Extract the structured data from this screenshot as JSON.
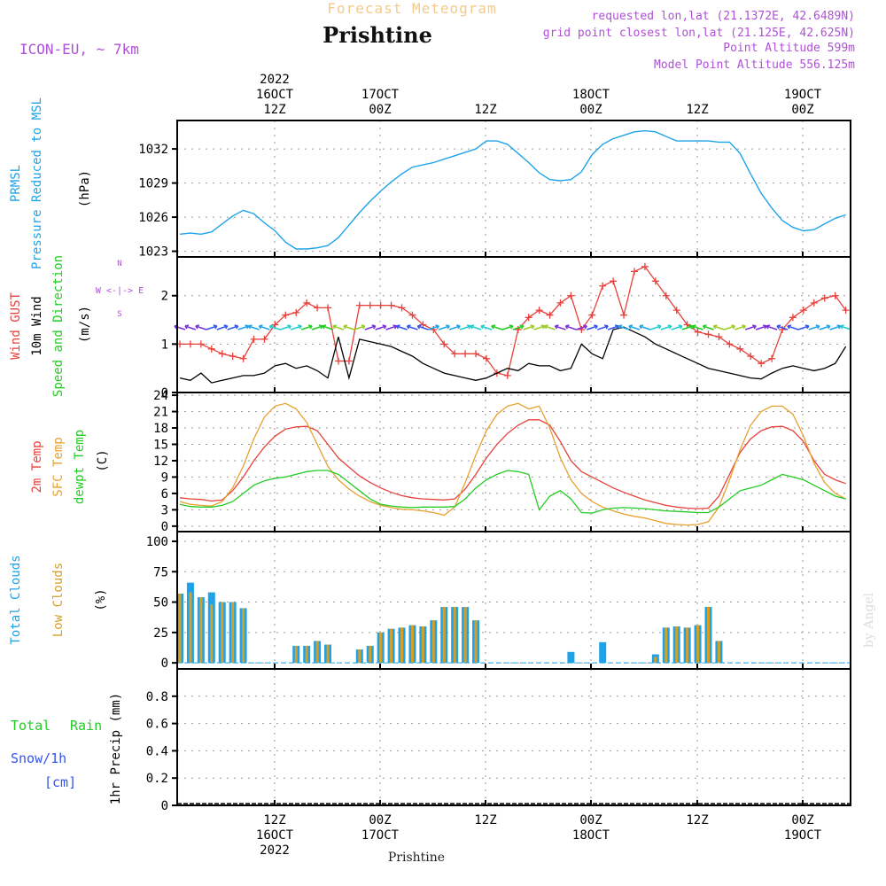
{
  "header": {
    "forecast_title": "Forecast Meteogram",
    "location": "Prishtine",
    "model": "ICON-EU, ~ 7km",
    "requested": "requested lon,lat (21.1372E, 42.6489N)",
    "grid_point": "grid point closest lon,lat (21.125E, 42.625N)",
    "point_altitude": "Point Altitude 599m",
    "model_altitude": "Model Point Altitude 556.125m",
    "bottom_location": "Prishtine",
    "watermark": "by Angel"
  },
  "top_axis": [
    {
      "lines": [
        "2022",
        "16OCT",
        "12Z"
      ]
    },
    {
      "lines": [
        "17OCT",
        "00Z"
      ]
    },
    {
      "lines": [
        "12Z"
      ]
    },
    {
      "lines": [
        "18OCT",
        "00Z"
      ]
    },
    {
      "lines": [
        "12Z"
      ]
    },
    {
      "lines": [
        "19OCT",
        "00Z"
      ]
    }
  ],
  "bottom_axis": [
    {
      "lines": [
        "12Z",
        "16OCT",
        "2022"
      ]
    },
    {
      "lines": [
        "00Z",
        "17OCT"
      ]
    },
    {
      "lines": [
        "12Z"
      ]
    },
    {
      "lines": [
        "00Z",
        "18OCT"
      ]
    },
    {
      "lines": [
        "12Z"
      ]
    },
    {
      "lines": [
        "00Z",
        "19OCT"
      ]
    }
  ],
  "panel_labels": {
    "pressure": {
      "name": [
        "PRMSL",
        "Pressure Reduced to MSL"
      ],
      "unit": "(hPa)"
    },
    "wind": {
      "gust": "Wind GUST",
      "wind10": "10m Wind",
      "speed": "Speed and Direction",
      "unit": "(m/s)",
      "compass": "W <-|-> E"
    },
    "temp": {
      "t2m": "2m Temp",
      "sfc": "SFC Temp",
      "dew": "dewpt Temp",
      "unit": "(C)"
    },
    "cloud": {
      "total": "Total Clouds",
      "low": "Low Clouds",
      "unit": "(%)"
    },
    "precip": {
      "rain_a": "Total",
      "rain_b": "Rain",
      "snow": "Snow/1h",
      "snow_unit": "[cm]",
      "unit": "1hr Precip (mm)"
    }
  },
  "colors": {
    "pressure": "#1fa3e8",
    "gust": "#e8403a",
    "wind": "#000000",
    "t2m": "#e8403a",
    "sfc": "#e8a030",
    "dew": "#22cc22",
    "total_cloud": "#1fa3e8",
    "low_cloud": "#d4a02a",
    "rain": "#22cc22",
    "snow": "#3355ee",
    "purple": "#b050d8"
  },
  "chart_data": [
    {
      "type": "line",
      "title": "PRMSL Pressure Reduced to MSL",
      "ylabel": "(hPa)",
      "ylim": [
        1022.5,
        1034.5
      ],
      "yticks": [
        1023,
        1026,
        1029,
        1032
      ],
      "x_hours": [
        0,
        1,
        2,
        3,
        4,
        5,
        6,
        7,
        8,
        9,
        10,
        11,
        12,
        13,
        14,
        15,
        16,
        17,
        18,
        19,
        20,
        21,
        22,
        23,
        24,
        25,
        26,
        27,
        28,
        29,
        30,
        31,
        32,
        33,
        34,
        35,
        36,
        37,
        38,
        39,
        40,
        41,
        42,
        43,
        44,
        45,
        46,
        47,
        48,
        49,
        50,
        51,
        52,
        53,
        54,
        55,
        56,
        57,
        58,
        59,
        60,
        61,
        62,
        63
      ],
      "series": [
        {
          "name": "PRMSL",
          "values": [
            1024.5,
            1024.6,
            1024.5,
            1024.7,
            1025.4,
            1026.1,
            1026.6,
            1026.3,
            1025.5,
            1024.8,
            1023.8,
            1023.2,
            1023.2,
            1023.3,
            1023.5,
            1024.2,
            1025.3,
            1026.4,
            1027.4,
            1028.3,
            1029.1,
            1029.8,
            1030.4,
            1030.6,
            1030.8,
            1031.1,
            1031.4,
            1031.7,
            1032.0,
            1032.7,
            1032.7,
            1032.4,
            1031.6,
            1030.8,
            1029.9,
            1029.3,
            1029.2,
            1029.3,
            1030.0,
            1031.5,
            1032.4,
            1032.9,
            1033.2,
            1033.5,
            1033.6,
            1033.5,
            1033.1,
            1032.7,
            1032.7,
            1032.7,
            1032.7,
            1032.6,
            1032.6,
            1031.6,
            1029.8,
            1028.1,
            1026.8,
            1025.7,
            1025.1,
            1024.8,
            1024.9,
            1025.4,
            1025.9,
            1026.2
          ]
        }
      ]
    },
    {
      "type": "line",
      "title": "Wind GUST / 10m Wind Speed and Direction",
      "ylabel": "(m/s)",
      "ylim": [
        0,
        2.8
      ],
      "yticks": [
        0,
        1,
        2
      ],
      "x_hours": [
        0,
        1,
        2,
        3,
        4,
        5,
        6,
        7,
        8,
        9,
        10,
        11,
        12,
        13,
        14,
        15,
        16,
        17,
        18,
        19,
        20,
        21,
        22,
        23,
        24,
        25,
        26,
        27,
        28,
        29,
        30,
        31,
        32,
        33,
        34,
        35,
        36,
        37,
        38,
        39,
        40,
        41,
        42,
        43,
        44,
        45,
        46,
        47,
        48,
        49,
        50,
        51,
        52,
        53,
        54,
        55,
        56,
        57,
        58,
        59,
        60,
        61,
        62,
        63
      ],
      "series": [
        {
          "name": "Wind GUST",
          "values": [
            1.0,
            1.0,
            1.0,
            0.9,
            0.8,
            0.75,
            0.7,
            1.1,
            1.1,
            1.4,
            1.6,
            1.65,
            1.85,
            1.75,
            1.75,
            0.65,
            0.65,
            1.8,
            1.8,
            1.8,
            1.8,
            1.75,
            1.6,
            1.4,
            1.3,
            1.0,
            0.8,
            0.8,
            0.8,
            0.7,
            0.4,
            0.35,
            1.3,
            1.55,
            1.7,
            1.6,
            1.85,
            2.0,
            1.3,
            1.6,
            2.2,
            2.3,
            1.6,
            2.5,
            2.6,
            2.3,
            2.0,
            1.7,
            1.4,
            1.25,
            1.2,
            1.15,
            1.0,
            0.9,
            0.75,
            0.6,
            0.7,
            1.3,
            1.55,
            1.7,
            1.85,
            1.95,
            2.0,
            1.7
          ]
        },
        {
          "name": "10m Wind",
          "values": [
            0.3,
            0.25,
            0.4,
            0.2,
            0.25,
            0.3,
            0.35,
            0.35,
            0.4,
            0.55,
            0.6,
            0.5,
            0.55,
            0.45,
            0.3,
            1.15,
            0.3,
            1.1,
            1.05,
            1.0,
            0.95,
            0.85,
            0.75,
            0.6,
            0.5,
            0.4,
            0.35,
            0.3,
            0.25,
            0.3,
            0.4,
            0.5,
            0.45,
            0.6,
            0.55,
            0.55,
            0.45,
            0.5,
            1.0,
            0.8,
            0.7,
            1.3,
            1.35,
            1.25,
            1.15,
            1.0,
            0.9,
            0.8,
            0.7,
            0.6,
            0.5,
            0.45,
            0.4,
            0.35,
            0.3,
            0.28,
            0.4,
            0.5,
            0.55,
            0.5,
            0.45,
            0.5,
            0.6,
            0.95
          ]
        }
      ]
    },
    {
      "type": "line",
      "title": "2m Temp / SFC Temp / dewpt Temp",
      "ylabel": "(C)",
      "ylim": [
        -1,
        24.5
      ],
      "yticks": [
        0,
        3,
        6,
        9,
        12,
        15,
        18,
        21,
        24
      ],
      "x_hours": [
        0,
        1,
        2,
        3,
        4,
        5,
        6,
        7,
        8,
        9,
        10,
        11,
        12,
        13,
        14,
        15,
        16,
        17,
        18,
        19,
        20,
        21,
        22,
        23,
        24,
        25,
        26,
        27,
        28,
        29,
        30,
        31,
        32,
        33,
        34,
        35,
        36,
        37,
        38,
        39,
        40,
        41,
        42,
        43,
        44,
        45,
        46,
        47,
        48,
        49,
        50,
        51,
        52,
        53,
        54,
        55,
        56,
        57,
        58,
        59,
        60,
        61,
        62,
        63
      ],
      "series": [
        {
          "name": "2m Temp",
          "values": [
            5.2,
            5.0,
            4.9,
            4.6,
            4.8,
            6.5,
            9.0,
            12.0,
            14.5,
            16.5,
            17.8,
            18.2,
            18.3,
            17.5,
            15.0,
            12.5,
            10.8,
            9.2,
            8.0,
            7.0,
            6.2,
            5.6,
            5.2,
            5.0,
            4.9,
            4.8,
            5.0,
            6.8,
            9.5,
            12.5,
            15.0,
            17.0,
            18.5,
            19.5,
            19.5,
            18.5,
            15.5,
            12.0,
            10.0,
            9.0,
            8.0,
            7.0,
            6.2,
            5.5,
            4.8,
            4.3,
            3.8,
            3.5,
            3.3,
            3.2,
            3.3,
            5.5,
            9.5,
            13.5,
            16.0,
            17.5,
            18.2,
            18.3,
            17.5,
            15.5,
            12.0,
            9.5,
            8.5,
            7.8
          ]
        },
        {
          "name": "SFC Temp",
          "values": [
            4.5,
            4.0,
            3.8,
            3.7,
            4.5,
            7.0,
            11.0,
            16.0,
            20.0,
            22.0,
            22.5,
            21.5,
            19.0,
            15.0,
            11.0,
            8.5,
            6.8,
            5.5,
            4.5,
            3.8,
            3.4,
            3.1,
            3.0,
            2.8,
            2.5,
            2.0,
            3.5,
            8.0,
            13.0,
            17.5,
            20.5,
            22.0,
            22.5,
            21.5,
            22.0,
            18.0,
            12.5,
            8.5,
            6.0,
            4.5,
            3.5,
            2.8,
            2.2,
            1.8,
            1.5,
            1.0,
            0.5,
            0.3,
            0.2,
            0.3,
            0.8,
            3.5,
            8.5,
            14.0,
            18.5,
            21.0,
            22.0,
            22.0,
            20.5,
            16.5,
            11.5,
            8.0,
            6.0,
            5.0
          ]
        },
        {
          "name": "dewpt Temp",
          "values": [
            4.0,
            3.6,
            3.5,
            3.5,
            3.8,
            4.5,
            6.0,
            7.5,
            8.3,
            8.8,
            9.0,
            9.5,
            10.0,
            10.2,
            10.2,
            9.5,
            8.0,
            6.5,
            5.0,
            4.0,
            3.7,
            3.5,
            3.4,
            3.5,
            3.5,
            3.5,
            3.6,
            5.0,
            7.0,
            8.5,
            9.5,
            10.2,
            10.0,
            9.5,
            3.0,
            5.5,
            6.5,
            5.0,
            2.5,
            2.4,
            3.0,
            3.3,
            3.4,
            3.3,
            3.2,
            3.0,
            2.8,
            2.7,
            2.6,
            2.5,
            2.5,
            3.5,
            5.0,
            6.5,
            7.0,
            7.5,
            8.5,
            9.5,
            9.0,
            8.5,
            7.5,
            6.5,
            5.5,
            5.0
          ]
        }
      ]
    },
    {
      "type": "bar",
      "title": "Total Clouds / Low Clouds",
      "ylabel": "(%)",
      "ylim": [
        -5,
        108
      ],
      "yticks": [
        0,
        25,
        50,
        75,
        100
      ],
      "x_hours": [
        0,
        1,
        2,
        3,
        4,
        5,
        6,
        7,
        8,
        9,
        10,
        11,
        12,
        13,
        14,
        15,
        16,
        17,
        18,
        19,
        20,
        21,
        22,
        23,
        24,
        25,
        26,
        27,
        28,
        29,
        30,
        31,
        32,
        33,
        34,
        35,
        36,
        37,
        38,
        39,
        40,
        41,
        42,
        43,
        44,
        45,
        46,
        47,
        48,
        49,
        50,
        51,
        52,
        53,
        54,
        55,
        56,
        57,
        58,
        59,
        60,
        61,
        62,
        63
      ],
      "series": [
        {
          "name": "Total Clouds",
          "values": [
            57,
            66,
            54,
            58,
            50,
            50,
            45,
            0,
            0,
            0,
            0,
            14,
            14,
            18,
            15,
            0,
            0,
            11,
            14,
            25,
            28,
            29,
            31,
            30,
            35,
            46,
            46,
            46,
            35,
            0,
            0,
            0,
            0,
            0,
            0,
            0,
            0,
            9,
            0,
            0,
            17,
            0,
            0,
            0,
            0,
            7,
            29,
            30,
            29,
            31,
            46,
            18,
            0,
            0,
            0,
            0,
            0,
            0,
            0,
            0,
            0,
            0,
            0,
            0
          ]
        },
        {
          "name": "Low Clouds",
          "values": [
            57,
            58,
            54,
            48,
            50,
            50,
            45,
            0,
            0,
            0,
            0,
            14,
            14,
            18,
            15,
            0,
            0,
            11,
            14,
            25,
            28,
            29,
            31,
            30,
            35,
            46,
            46,
            46,
            35,
            0,
            0,
            0,
            0,
            0,
            0,
            0,
            0,
            0,
            0,
            0,
            0,
            0,
            0,
            0,
            0,
            5,
            29,
            30,
            29,
            31,
            46,
            18,
            0,
            0,
            0,
            0,
            0,
            0,
            0,
            0,
            0,
            0,
            0,
            0
          ]
        }
      ]
    },
    {
      "type": "bar",
      "title": "1hr Precip",
      "ylabel": "1hr Precip (mm)",
      "ylim": [
        0,
        1.0
      ],
      "yticks": [
        0,
        0.2,
        0.4,
        0.6,
        0.8
      ],
      "series": [
        {
          "name": "Total Rain",
          "values": []
        },
        {
          "name": "Snow/1h",
          "values": []
        }
      ]
    }
  ]
}
